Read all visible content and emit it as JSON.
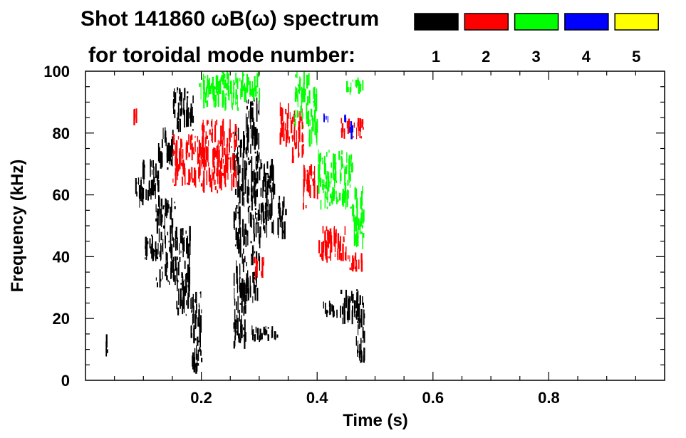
{
  "chart_data": {
    "type": "heatmap",
    "title_line1": "Shot 141860 ωB(ω) spectrum",
    "title_line2": "for toroidal mode number:",
    "xlabel": "Time (s)",
    "ylabel": "Frequency (kHz)",
    "xlim": [
      0,
      1.0
    ],
    "ylim": [
      0,
      100
    ],
    "xticks": [
      0.2,
      0.4,
      0.6,
      0.8
    ],
    "xtick_labels": [
      "0.2",
      "0.4",
      "0.6",
      "0.8"
    ],
    "yticks": [
      0,
      20,
      40,
      60,
      80,
      100
    ],
    "ytick_labels": [
      "0",
      "20",
      "40",
      "60",
      "80",
      "100"
    ],
    "legend": [
      {
        "label": "1",
        "color": "#000000"
      },
      {
        "label": "2",
        "color": "#ff0000"
      },
      {
        "label": "3",
        "color": "#00ff00"
      },
      {
        "label": "4",
        "color": "#0000ff"
      },
      {
        "label": "5",
        "color": "#ffff00"
      }
    ],
    "series": [
      {
        "name": "n=1",
        "color": "#000000",
        "regions": [
          {
            "t": [
              0.032,
              0.037
            ],
            "f": [
              7,
              15
            ]
          },
          {
            "t": [
              0.085,
              0.098
            ],
            "f": [
              55,
              66
            ]
          },
          {
            "t": [
              0.098,
              0.125
            ],
            "f": [
              58,
              72
            ]
          },
          {
            "t": [
              0.125,
              0.15
            ],
            "f": [
              68,
              82
            ]
          },
          {
            "t": [
              0.15,
              0.185
            ],
            "f": [
              80,
              95
            ]
          },
          {
            "t": [
              0.1,
              0.12
            ],
            "f": [
              37,
              48
            ]
          },
          {
            "t": [
              0.12,
              0.155
            ],
            "f": [
              30,
              60
            ]
          },
          {
            "t": [
              0.155,
              0.18
            ],
            "f": [
              20,
              50
            ]
          },
          {
            "t": [
              0.18,
              0.2
            ],
            "f": [
              2,
              30
            ]
          },
          {
            "t": [
              0.255,
              0.275
            ],
            "f": [
              10,
              82
            ]
          },
          {
            "t": [
              0.275,
              0.3
            ],
            "f": [
              25,
              92
            ]
          },
          {
            "t": [
              0.3,
              0.325
            ],
            "f": [
              45,
              72
            ]
          },
          {
            "t": [
              0.33,
              0.345
            ],
            "f": [
              45,
              60
            ]
          },
          {
            "t": [
              0.285,
              0.33
            ],
            "f": [
              12,
              18
            ]
          },
          {
            "t": [
              0.3,
              0.32
            ],
            "f": [
              50,
              58
            ]
          },
          {
            "t": [
              0.41,
              0.44
            ],
            "f": [
              20,
              26
            ]
          },
          {
            "t": [
              0.44,
              0.47
            ],
            "f": [
              18,
              30
            ]
          },
          {
            "t": [
              0.465,
              0.48
            ],
            "f": [
              5,
              28
            ]
          }
        ]
      },
      {
        "name": "n=2",
        "color": "#ff0000",
        "regions": [
          {
            "t": [
              0.082,
              0.088
            ],
            "f": [
              80,
              88
            ]
          },
          {
            "t": [
              0.15,
              0.2
            ],
            "f": [
              62,
              80
            ]
          },
          {
            "t": [
              0.2,
              0.26
            ],
            "f": [
              60,
              85
            ]
          },
          {
            "t": [
              0.335,
              0.35
            ],
            "f": [
              75,
              90
            ]
          },
          {
            "t": [
              0.35,
              0.375
            ],
            "f": [
              70,
              88
            ]
          },
          {
            "t": [
              0.375,
              0.4
            ],
            "f": [
              55,
              70
            ]
          },
          {
            "t": [
              0.4,
              0.45
            ],
            "f": [
              38,
              50
            ]
          },
          {
            "t": [
              0.45,
              0.478
            ],
            "f": [
              35,
              42
            ]
          },
          {
            "t": [
              0.44,
              0.48
            ],
            "f": [
              78,
              85
            ]
          },
          {
            "t": [
              0.29,
              0.31
            ],
            "f": [
              32,
              40
            ]
          }
        ]
      },
      {
        "name": "n=3",
        "color": "#00ff00",
        "regions": [
          {
            "t": [
              0.195,
              0.265
            ],
            "f": [
              87,
              100
            ]
          },
          {
            "t": [
              0.265,
              0.3
            ],
            "f": [
              90,
              100
            ]
          },
          {
            "t": [
              0.36,
              0.385
            ],
            "f": [
              80,
              100
            ]
          },
          {
            "t": [
              0.385,
              0.4
            ],
            "f": [
              75,
              95
            ]
          },
          {
            "t": [
              0.4,
              0.46
            ],
            "f": [
              55,
              75
            ]
          },
          {
            "t": [
              0.45,
              0.48
            ],
            "f": [
              92,
              98
            ]
          },
          {
            "t": [
              0.46,
              0.48
            ],
            "f": [
              42,
              65
            ]
          }
        ]
      },
      {
        "name": "n=4",
        "color": "#0000ff",
        "regions": [
          {
            "t": [
              0.408,
              0.42
            ],
            "f": [
              83,
              87
            ]
          },
          {
            "t": [
              0.44,
              0.452
            ],
            "f": [
              82,
              86
            ]
          },
          {
            "t": [
              0.452,
              0.46
            ],
            "f": [
              78,
              84
            ]
          }
        ]
      },
      {
        "name": "n=5",
        "color": "#ffff00",
        "regions": []
      }
    ]
  }
}
